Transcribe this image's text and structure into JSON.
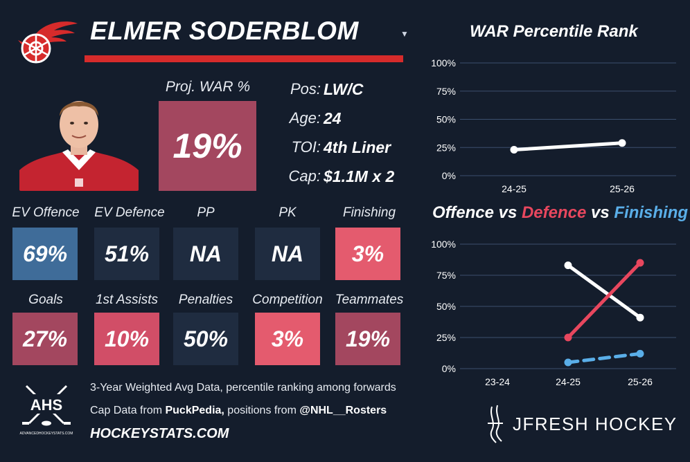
{
  "player": {
    "name": "ELMER SODERBLOM",
    "proj_war_label": "Proj. WAR %",
    "proj_war_value": "19%",
    "info": [
      {
        "label": "Pos:",
        "value": "LW/C"
      },
      {
        "label": "Age:",
        "value": "24"
      },
      {
        "label": "TOI:",
        "value": "4th Liner"
      },
      {
        "label": "Cap:",
        "value": "$1.1M x 2"
      }
    ]
  },
  "stats_row1": [
    {
      "label": "EV Offence",
      "value": "69%",
      "color": "#3f6c99"
    },
    {
      "label": "EV Defence",
      "value": "51%",
      "color": "#1f2c40"
    },
    {
      "label": "PP",
      "value": "NA",
      "color": "#1f2c40"
    },
    {
      "label": "PK",
      "value": "NA",
      "color": "#1f2c40"
    },
    {
      "label": "Finishing",
      "value": "3%",
      "color": "#e45b6e"
    }
  ],
  "stats_row2": [
    {
      "label": "Goals",
      "value": "27%",
      "color": "#a3475f"
    },
    {
      "label": "1st Assists",
      "value": "10%",
      "color": "#d14e67"
    },
    {
      "label": "Penalties",
      "value": "50%",
      "color": "#1f2c40"
    },
    {
      "label": "Competition",
      "value": "3%",
      "color": "#e45b6e"
    },
    {
      "label": "Teammates",
      "value": "19%",
      "color": "#a3475f"
    }
  ],
  "footer": {
    "line1": "3-Year Weighted Avg Data, percentile ranking among forwards",
    "line2_prefix": "Cap Data from ",
    "line2_pp": "PuckPedia,",
    "line2_mid": " positions from ",
    "line2_rosters": "@NHL__Rosters",
    "site": "HOCKEYSTATS.COM",
    "ahs_label": "AHS",
    "ahs_small": "ADVANCEDHOCKEYSTATS.COM",
    "brand": "JFRESH HOCKEY"
  },
  "colors": {
    "background": "#141d2c",
    "red": "#e8475e",
    "blue": "#5aaee8",
    "white": "#ffffff"
  },
  "chart_data": [
    {
      "type": "line",
      "title": "WAR Percentile Rank",
      "categories": [
        "24-25",
        "25-26"
      ],
      "y_ticks": [
        "0%",
        "25%",
        "50%",
        "75%",
        "100%"
      ],
      "ylim": [
        0,
        100
      ],
      "series": [
        {
          "name": "WAR",
          "values": [
            23,
            29
          ],
          "color": "#ffffff",
          "dashed": false
        }
      ]
    },
    {
      "type": "line",
      "title_parts": [
        "Offence",
        " vs ",
        "Defence",
        " vs ",
        "Finishing"
      ],
      "categories": [
        "23-24",
        "24-25",
        "25-26"
      ],
      "y_ticks": [
        "0%",
        "25%",
        "50%",
        "75%",
        "100%"
      ],
      "ylim": [
        0,
        100
      ],
      "series": [
        {
          "name": "Offence",
          "values": [
            null,
            83,
            41
          ],
          "color": "#ffffff",
          "dashed": false
        },
        {
          "name": "Defence",
          "values": [
            null,
            25,
            85
          ],
          "color": "#e8475e",
          "dashed": false
        },
        {
          "name": "Finishing",
          "values": [
            null,
            5,
            12
          ],
          "color": "#5aaee8",
          "dashed": true
        }
      ]
    }
  ]
}
